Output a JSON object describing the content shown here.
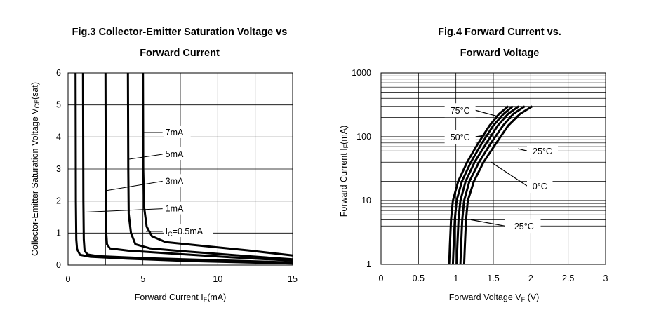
{
  "chart_data": [
    {
      "type": "line",
      "title_line1": "Fig.3 Collector-Emitter Saturation Voltage vs",
      "title_line2": "Forward Current",
      "xlabel_main": "Forward Current I",
      "xlabel_sub": "F",
      "xlabel_unit": "(mA)",
      "ylabel_main": "Collector-Emitter Saturation Voltage V",
      "ylabel_sub": "CE",
      "ylabel_unit": "(sat)",
      "xlim": [
        0,
        15
      ],
      "ylim": [
        0,
        6
      ],
      "xticks": [
        "0",
        "5",
        "10",
        "15"
      ],
      "yticks": [
        "0",
        "1",
        "2",
        "3",
        "4",
        "5",
        "6"
      ],
      "grid": true,
      "series": [
        {
          "name": "IC=0.5mA",
          "label_main": "I",
          "label_sub": "C",
          "label_rest": "=0.5mA",
          "points": [
            [
              0.5,
              6
            ],
            [
              0.52,
              2
            ],
            [
              0.55,
              0.8
            ],
            [
              0.6,
              0.5
            ],
            [
              0.8,
              0.32
            ],
            [
              1.5,
              0.26
            ],
            [
              4,
              0.2
            ],
            [
              8,
              0.13
            ],
            [
              12,
              0.08
            ],
            [
              15,
              0.05
            ]
          ]
        },
        {
          "name": "1mA",
          "label_main": "1mA",
          "label_sub": "",
          "label_rest": "",
          "points": [
            [
              1,
              6
            ],
            [
              1.02,
              2
            ],
            [
              1.05,
              0.8
            ],
            [
              1.1,
              0.45
            ],
            [
              1.3,
              0.33
            ],
            [
              2,
              0.28
            ],
            [
              5,
              0.22
            ],
            [
              10,
              0.15
            ],
            [
              15,
              0.08
            ]
          ]
        },
        {
          "name": "3mA",
          "label_main": "3mA",
          "label_sub": "",
          "label_rest": "",
          "points": [
            [
              2.5,
              6
            ],
            [
              2.52,
              2
            ],
            [
              2.55,
              1
            ],
            [
              2.6,
              0.65
            ],
            [
              2.8,
              0.52
            ],
            [
              4,
              0.45
            ],
            [
              7,
              0.36
            ],
            [
              11,
              0.24
            ],
            [
              15,
              0.14
            ]
          ]
        },
        {
          "name": "5mA",
          "label_main": "5mA",
          "label_sub": "",
          "label_rest": "",
          "points": [
            [
              4,
              6
            ],
            [
              4.02,
              3
            ],
            [
              4.05,
              1.6
            ],
            [
              4.2,
              1
            ],
            [
              4.5,
              0.65
            ],
            [
              5.5,
              0.52
            ],
            [
              8,
              0.42
            ],
            [
              12,
              0.28
            ],
            [
              15,
              0.18
            ]
          ]
        },
        {
          "name": "7mA",
          "label_main": "7mA",
          "label_sub": "",
          "label_rest": "",
          "points": [
            [
              5,
              6
            ],
            [
              5.02,
              3
            ],
            [
              5.08,
              1.8
            ],
            [
              5.25,
              1.2
            ],
            [
              5.6,
              0.9
            ],
            [
              6.5,
              0.72
            ],
            [
              9,
              0.6
            ],
            [
              12,
              0.46
            ],
            [
              15,
              0.3
            ]
          ]
        }
      ],
      "annotations": [
        {
          "series": 0,
          "point": [
            5.2,
            1.05
          ],
          "label_at": [
            6.5,
            1.05
          ]
        },
        {
          "series": 1,
          "point": [
            1.0,
            1.65
          ],
          "label_at": [
            6.5,
            1.76
          ]
        },
        {
          "series": 2,
          "point": [
            2.5,
            2.32
          ],
          "label_at": [
            6.5,
            2.62
          ]
        },
        {
          "series": 3,
          "point": [
            4.0,
            3.3
          ],
          "label_at": [
            6.5,
            3.46
          ]
        },
        {
          "series": 4,
          "point": [
            5.0,
            4.14
          ],
          "label_at": [
            6.5,
            4.14
          ]
        }
      ]
    },
    {
      "type": "line",
      "title_line1": "Fig.4 Forward Current vs.",
      "title_line2": "Forward Voltage",
      "xlabel_main": "Forward  Voltage V",
      "xlabel_sub": "F",
      "xlabel_unit": " (V)",
      "ylabel_main": "Forward Current I",
      "ylabel_sub": "F",
      "ylabel_unit": "(mA)",
      "xlim": [
        0,
        3
      ],
      "ylim": [
        1,
        1000
      ],
      "yscale": "log",
      "xticks": [
        "0",
        "0.5",
        "1",
        "1.5",
        "2",
        "2.5",
        "3"
      ],
      "yticks": [
        "1",
        "10",
        "100",
        "1000"
      ],
      "grid": true,
      "series": [
        {
          "name": "75°C",
          "label_main": "75",
          "label_sub": "",
          "label_rest": "°C",
          "points": [
            [
              0.91,
              1
            ],
            [
              0.92,
              2
            ],
            [
              0.935,
              5
            ],
            [
              0.96,
              10
            ],
            [
              1.03,
              20
            ],
            [
              1.15,
              40
            ],
            [
              1.3,
              80
            ],
            [
              1.45,
              150
            ],
            [
              1.58,
              230
            ],
            [
              1.7,
              300
            ]
          ]
        },
        {
          "name": "50°C",
          "label_main": "50",
          "label_sub": "",
          "label_rest": "°C",
          "points": [
            [
              0.96,
              1
            ],
            [
              0.97,
              2
            ],
            [
              0.985,
              5
            ],
            [
              1.01,
              10
            ],
            [
              1.08,
              20
            ],
            [
              1.2,
              40
            ],
            [
              1.35,
              80
            ],
            [
              1.5,
              150
            ],
            [
              1.64,
              230
            ],
            [
              1.76,
              300
            ]
          ]
        },
        {
          "name": "25°C",
          "label_main": "25",
          "label_sub": "",
          "label_rest": "°C",
          "points": [
            [
              1.01,
              1
            ],
            [
              1.02,
              2
            ],
            [
              1.035,
              5
            ],
            [
              1.06,
              10
            ],
            [
              1.13,
              20
            ],
            [
              1.25,
              40
            ],
            [
              1.41,
              80
            ],
            [
              1.56,
              150
            ],
            [
              1.7,
              230
            ],
            [
              1.84,
              300
            ]
          ]
        },
        {
          "name": "0°C",
          "label_main": "0",
          "label_sub": "",
          "label_rest": "°C",
          "points": [
            [
              1.06,
              1
            ],
            [
              1.07,
              2
            ],
            [
              1.085,
              5
            ],
            [
              1.11,
              10
            ],
            [
              1.18,
              20
            ],
            [
              1.31,
              40
            ],
            [
              1.47,
              80
            ],
            [
              1.63,
              150
            ],
            [
              1.77,
              230
            ],
            [
              1.92,
              300
            ]
          ]
        },
        {
          "name": "-25°C",
          "label_main": "-25",
          "label_sub": "",
          "label_rest": "°C",
          "points": [
            [
              1.11,
              1
            ],
            [
              1.12,
              2
            ],
            [
              1.135,
              5
            ],
            [
              1.16,
              10
            ],
            [
              1.24,
              20
            ],
            [
              1.37,
              40
            ],
            [
              1.54,
              80
            ],
            [
              1.7,
              150
            ],
            [
              1.86,
              230
            ],
            [
              2.02,
              300
            ]
          ]
        }
      ],
      "annotations": [
        {
          "series": 0,
          "point": [
            1.55,
            210
          ],
          "label_at": [
            0.85,
            260
          ]
        },
        {
          "series": 1,
          "point": [
            1.5,
            110
          ],
          "label_at": [
            0.85,
            100
          ]
        },
        {
          "series": 2,
          "point": [
            1.83,
            65
          ],
          "label_at": [
            1.95,
            60
          ]
        },
        {
          "series": 3,
          "point": [
            1.47,
            40
          ],
          "label_at": [
            1.95,
            17
          ]
        },
        {
          "series": 4,
          "point": [
            1.2,
            5
          ],
          "label_at": [
            1.65,
            4
          ]
        }
      ]
    }
  ]
}
